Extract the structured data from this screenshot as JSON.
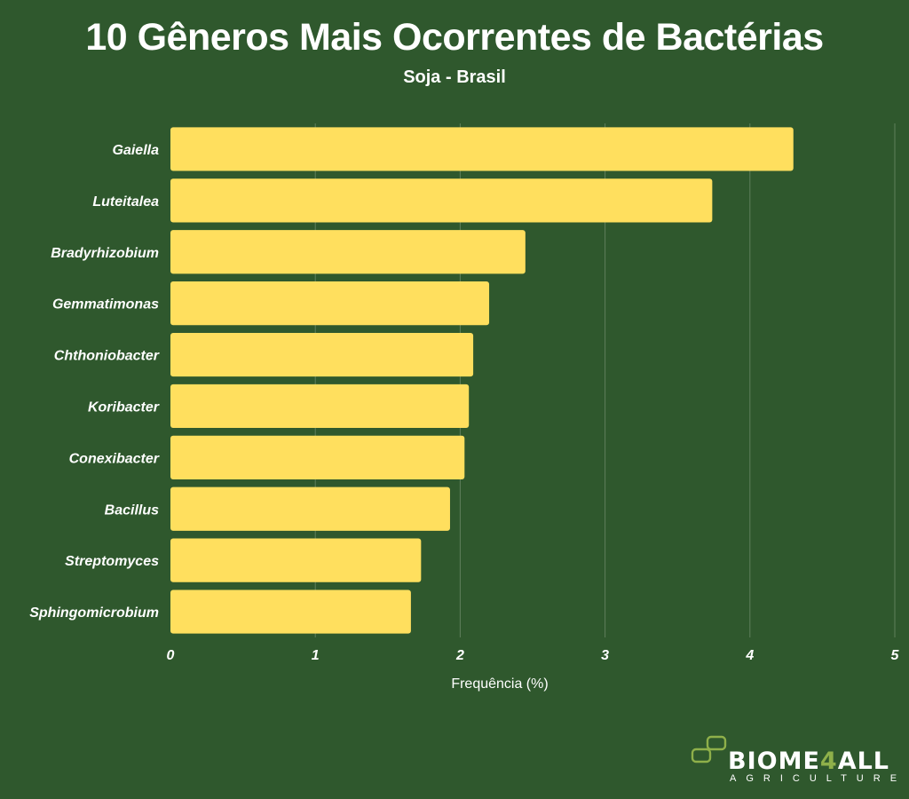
{
  "header": {
    "title": "10 Gêneros Mais Ocorrentes de Bactérias",
    "subtitle": "Soja - Brasil"
  },
  "chart_data": {
    "type": "bar",
    "orientation": "horizontal",
    "title": "10 Gêneros Mais Ocorrentes de Bactérias",
    "subtitle": "Soja - Brasil",
    "xlabel": "Frequência (%)",
    "ylabel": "",
    "categories": [
      "Gaiella",
      "Luteitalea",
      "Bradyrhizobium",
      "Gemmatimonas",
      "Chthoniobacter",
      "Koribacter",
      "Conexibacter",
      "Bacillus",
      "Streptomyces",
      "Sphingomicrobium"
    ],
    "values": [
      4.3,
      3.74,
      2.45,
      2.2,
      2.09,
      2.06,
      2.03,
      1.93,
      1.73,
      1.66
    ],
    "xlim": [
      0,
      5
    ],
    "xticks": [
      "0",
      "1",
      "2",
      "3",
      "4",
      "5"
    ],
    "grid": true,
    "colors": {
      "bar": "#ffdf5e",
      "background": "#2f582d",
      "grid": "#5f7f5c"
    }
  },
  "brand": {
    "name_main": "BIOME",
    "name_accent": "4",
    "name_end": "ALL",
    "tagline": "AGRICULTURE",
    "logo_icon": "leaf-squares-icon"
  }
}
